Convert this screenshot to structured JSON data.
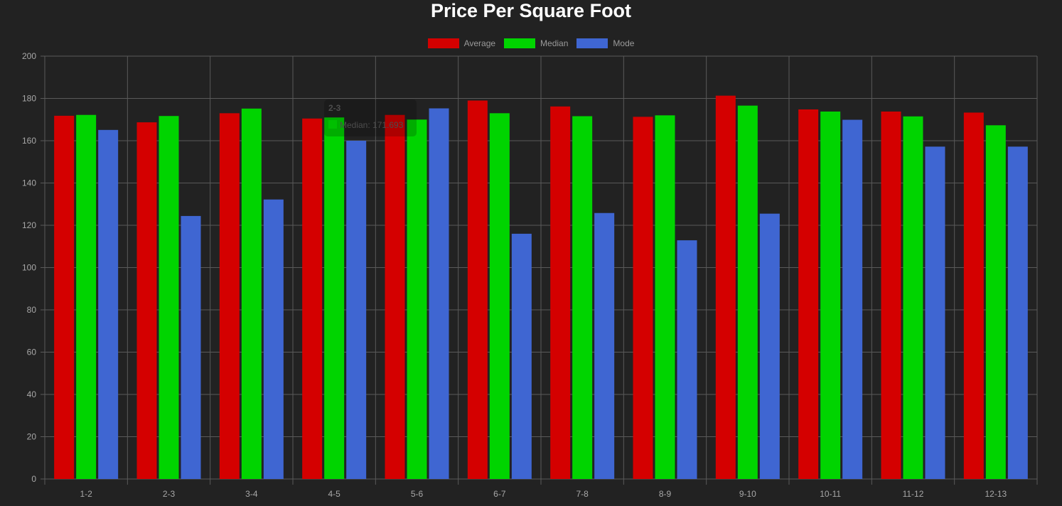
{
  "chart_data": {
    "type": "bar",
    "title": "Price Per Square Foot",
    "categories": [
      "1-2",
      "2-3",
      "3-4",
      "4-5",
      "5-6",
      "6-7",
      "7-8",
      "8-9",
      "9-10",
      "10-11",
      "11-12",
      "12-13"
    ],
    "series": [
      {
        "name": "Average",
        "color": "#d40000",
        "values": [
          171.8,
          168.7,
          173.0,
          170.5,
          172.2,
          179.0,
          176.2,
          171.3,
          181.3,
          174.8,
          173.8,
          173.3
        ]
      },
      {
        "name": "Median",
        "color": "#00d400",
        "values": [
          172.2,
          171.693,
          175.2,
          171.0,
          170.0,
          173.0,
          171.6,
          172.0,
          176.6,
          173.8,
          171.5,
          167.3
        ]
      },
      {
        "name": "Mode",
        "color": "#3f66d2",
        "values": [
          165.1,
          124.4,
          132.2,
          160.0,
          175.3,
          116.0,
          125.8,
          112.9,
          125.5,
          169.9,
          157.2,
          157.2
        ]
      }
    ],
    "yticks": [
      "0",
      "20",
      "40",
      "60",
      "80",
      "100",
      "120",
      "140",
      "160",
      "180",
      "200"
    ],
    "ylim": [
      0,
      200
    ],
    "grid": true,
    "legend_position": "top-center",
    "tooltip": {
      "title": "2-3",
      "label": "Median: 171.693",
      "color": "#00d400"
    }
  }
}
